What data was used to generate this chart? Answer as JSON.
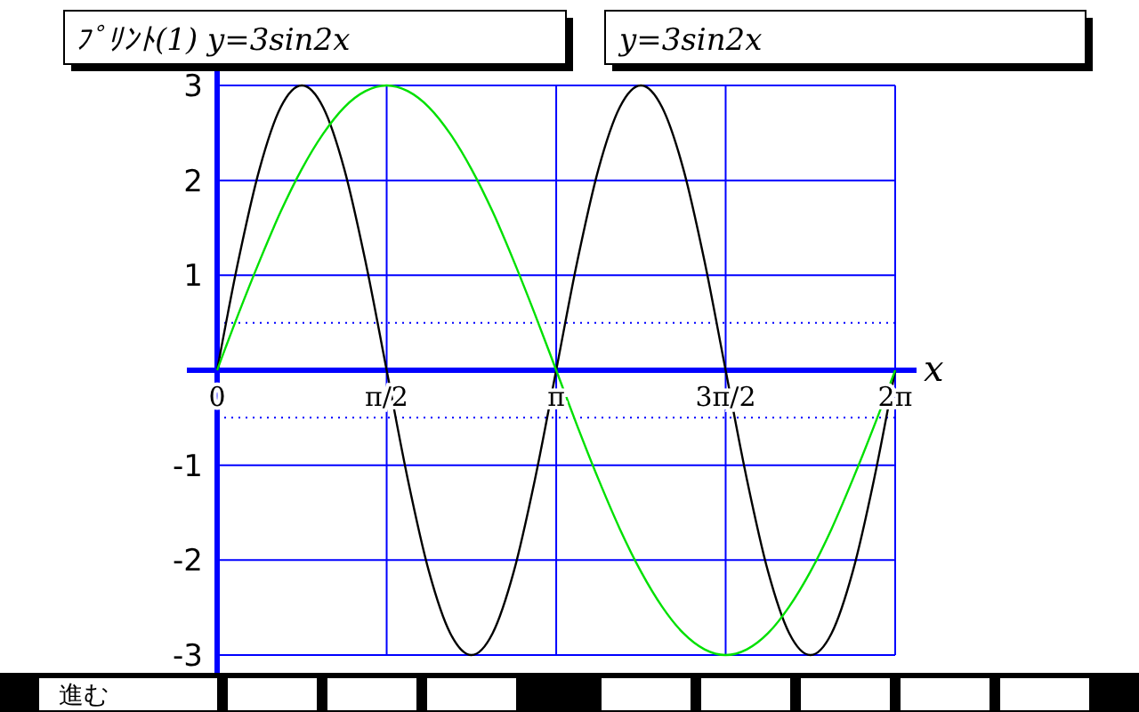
{
  "chart_data": {
    "type": "line",
    "title": "ﾌﾟﾘﾝﾄ(1) y=3sin2x",
    "subtitle": "y=3sin2x",
    "xlabel": "x",
    "x": [
      0,
      0.196,
      0.393,
      0.589,
      0.785,
      0.982,
      1.178,
      1.374,
      1.571,
      1.767,
      1.963,
      2.16,
      2.356,
      2.553,
      2.749,
      2.945,
      3.142,
      3.338,
      3.534,
      3.731,
      3.927,
      4.123,
      4.32,
      4.516,
      4.712,
      4.909,
      5.105,
      5.301,
      5.498,
      5.694,
      5.89,
      6.087,
      6.283
    ],
    "series": [
      {
        "color": "#000000",
        "values": [
          0,
          1.15,
          2.12,
          2.77,
          3,
          2.77,
          2.12,
          1.15,
          0,
          -1.15,
          -2.12,
          -2.77,
          -3,
          -2.77,
          -2.12,
          -1.15,
          0,
          1.15,
          2.12,
          2.77,
          3,
          2.77,
          2.12,
          1.15,
          0,
          -1.15,
          -2.12,
          -2.77,
          -3,
          -2.77,
          -2.12,
          -1.15,
          0
        ]
      },
      {
        "color": "#00e000",
        "values": [
          0,
          0.59,
          1.15,
          1.67,
          2.12,
          2.49,
          2.77,
          2.94,
          3,
          2.94,
          2.77,
          2.49,
          2.12,
          1.67,
          1.15,
          0.59,
          0,
          -0.59,
          -1.15,
          -1.67,
          -2.12,
          -2.49,
          -2.77,
          -2.94,
          -3,
          -2.94,
          -2.77,
          -2.49,
          -2.12,
          -1.67,
          -1.15,
          -0.59,
          0
        ]
      }
    ],
    "xlim": [
      0,
      6.283
    ],
    "xticks": [
      {
        "value": 0,
        "label": "0"
      },
      {
        "value": 1.571,
        "label": "π/2"
      },
      {
        "value": 3.142,
        "label": "π"
      },
      {
        "value": 4.712,
        "label": "3π/2"
      },
      {
        "value": 6.283,
        "label": "2π"
      }
    ],
    "ylim": [
      -3,
      3
    ],
    "yticks": [
      -3,
      -2,
      -1,
      1,
      2,
      3
    ],
    "grid": true,
    "ref_lines": [
      {
        "axis": "y",
        "value": 0.5,
        "line_style": "dotted",
        "color": "#0000ff"
      },
      {
        "axis": "y",
        "value": -0.5,
        "line_style": "dotted",
        "color": "#0000ff"
      }
    ],
    "annotations": [
      "進む"
    ]
  }
}
